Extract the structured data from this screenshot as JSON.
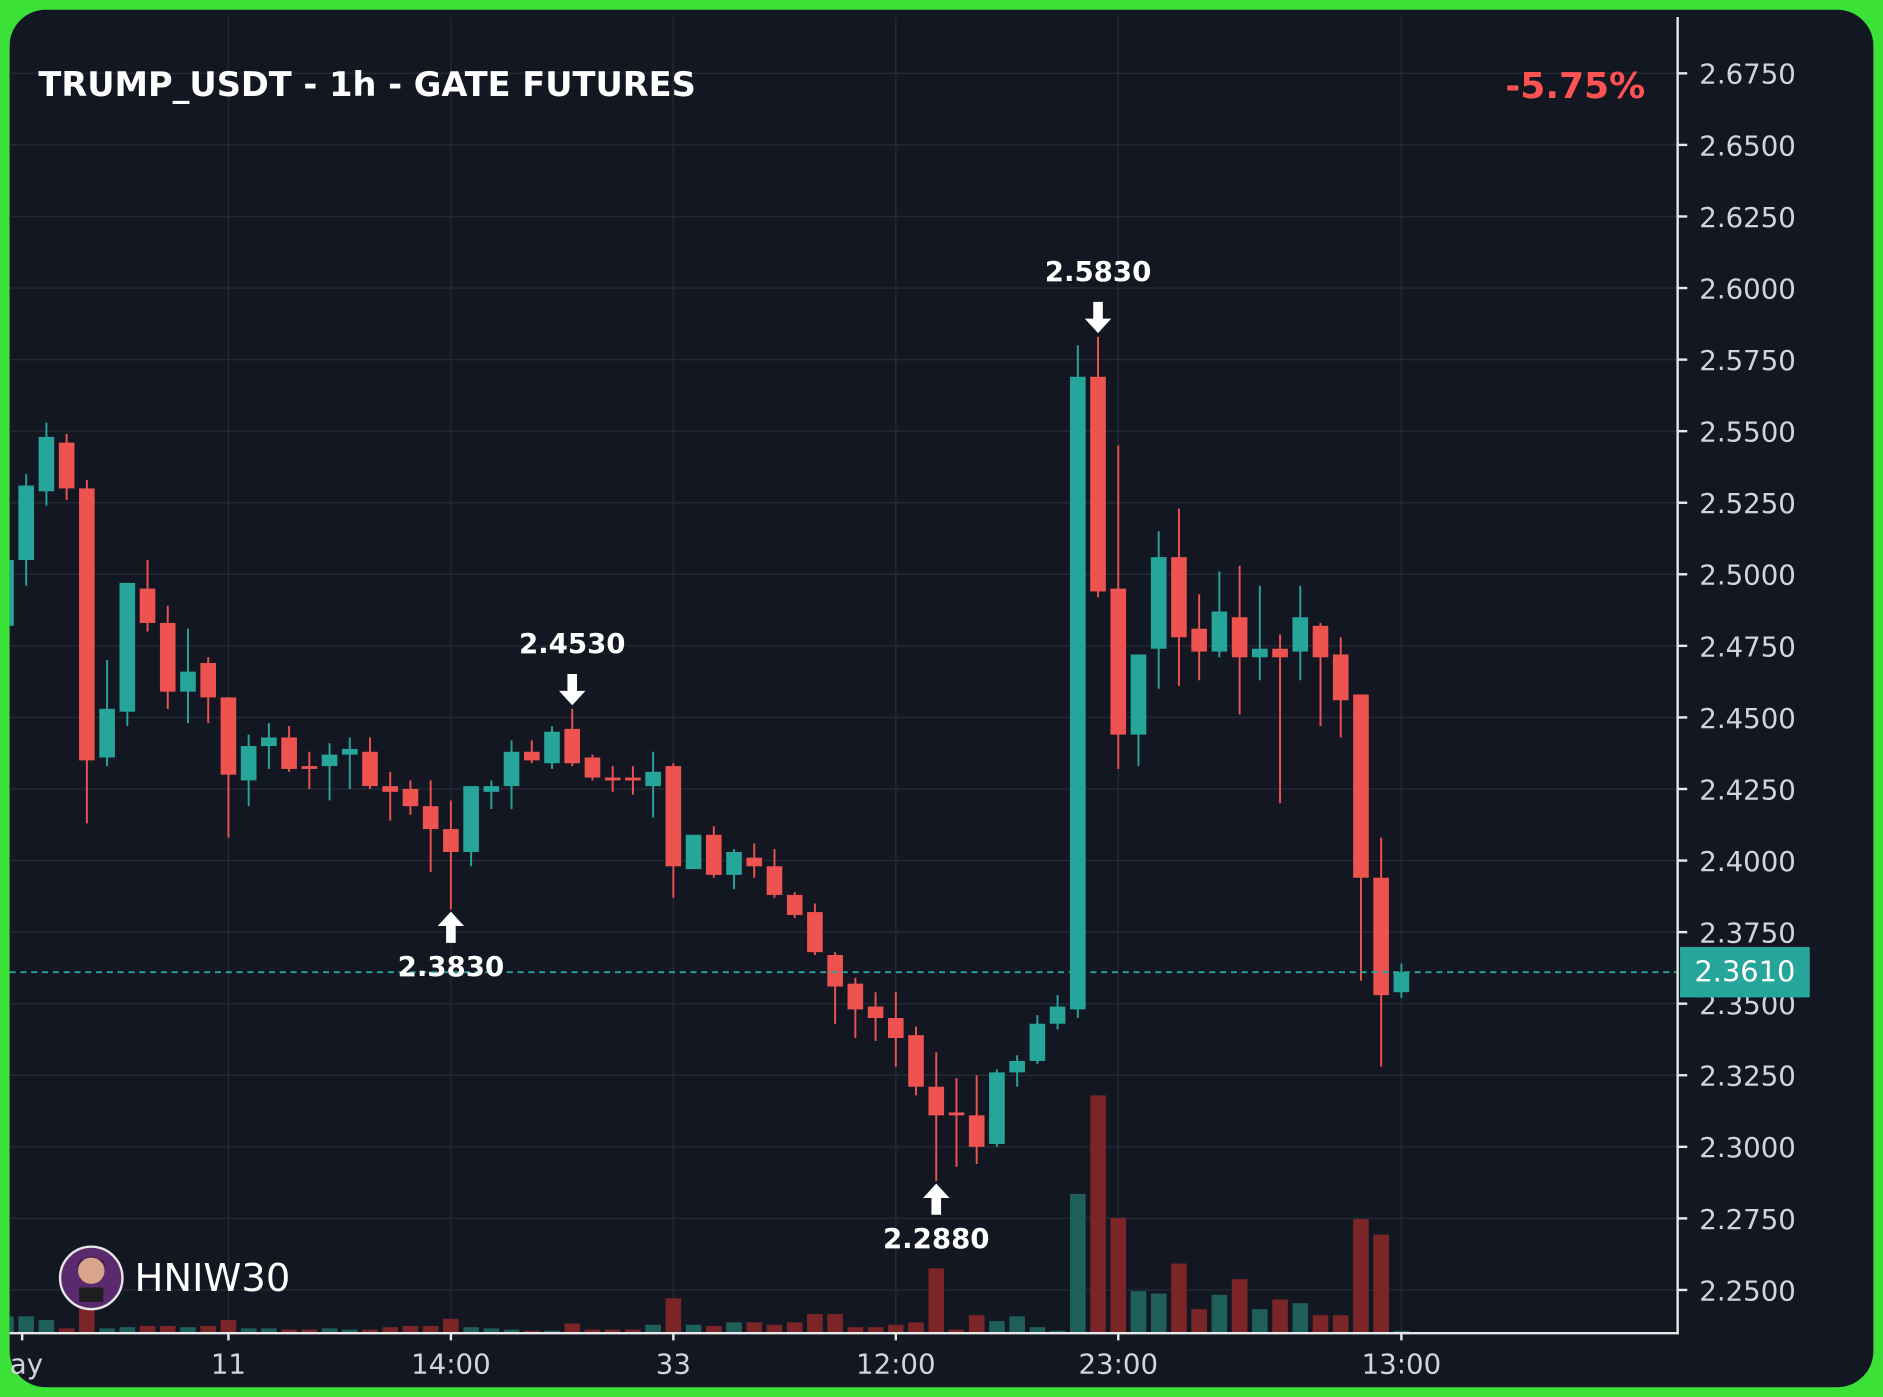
{
  "chart_data": {
    "type": "candlestick",
    "title": "TRUMP_USDT - 1h - GATE FUTURES",
    "change": "-5.75%",
    "watermark": "HNIW30",
    "up_color": "#26a69a",
    "down_color": "#ef5350",
    "volume_up_color": "#1f5f5a",
    "volume_down_color": "#7b2528",
    "grid": true,
    "x": [
      0,
      1,
      2,
      3,
      4,
      5,
      6,
      7,
      8,
      9,
      10,
      11,
      12,
      13,
      14,
      15,
      16,
      17,
      18,
      19,
      20,
      21,
      22,
      23,
      24,
      25,
      26,
      27,
      28,
      29,
      30,
      31,
      32,
      33,
      34,
      35,
      36,
      37,
      38,
      39,
      40,
      41,
      42,
      43,
      44,
      45,
      46,
      47,
      48,
      49,
      50,
      51,
      52,
      53,
      54,
      55,
      56,
      57,
      58,
      59,
      60,
      61,
      62,
      63,
      64,
      65,
      66,
      67,
      68,
      69
    ],
    "open": [
      2.482,
      2.505,
      2.529,
      2.546,
      2.53,
      2.436,
      2.452,
      2.495,
      2.483,
      2.459,
      2.469,
      2.457,
      2.428,
      2.44,
      2.443,
      2.433,
      2.433,
      2.437,
      2.438,
      2.426,
      2.425,
      2.419,
      2.411,
      2.403,
      2.424,
      2.426,
      2.438,
      2.434,
      2.446,
      2.436,
      2.429,
      2.429,
      2.426,
      2.433,
      2.397,
      2.409,
      2.395,
      2.401,
      2.398,
      2.388,
      2.382,
      2.367,
      2.357,
      2.349,
      2.345,
      2.339,
      2.321,
      2.312,
      2.311,
      2.301,
      2.326,
      2.33,
      2.343,
      2.348,
      2.569,
      2.495,
      2.444,
      2.474,
      2.506,
      2.481,
      2.473,
      2.485,
      2.471,
      2.474,
      2.473,
      2.482,
      2.472,
      2.458,
      2.394,
      2.354
    ],
    "high": [
      2.508,
      2.535,
      2.553,
      2.549,
      2.533,
      2.47,
      2.497,
      2.505,
      2.489,
      2.481,
      2.471,
      2.457,
      2.444,
      2.448,
      2.447,
      2.438,
      2.441,
      2.443,
      2.443,
      2.431,
      2.428,
      2.428,
      2.421,
      2.426,
      2.428,
      2.442,
      2.442,
      2.447,
      2.453,
      2.437,
      2.433,
      2.433,
      2.438,
      2.434,
      2.409,
      2.412,
      2.404,
      2.406,
      2.404,
      2.389,
      2.385,
      2.368,
      2.359,
      2.354,
      2.354,
      2.342,
      2.333,
      2.324,
      2.325,
      2.327,
      2.332,
      2.346,
      2.353,
      2.58,
      2.583,
      2.545,
      2.472,
      2.515,
      2.523,
      2.493,
      2.501,
      2.503,
      2.496,
      2.479,
      2.496,
      2.483,
      2.478,
      2.458,
      2.408,
      2.364
    ],
    "low": [
      2.48,
      2.496,
      2.524,
      2.526,
      2.413,
      2.433,
      2.447,
      2.48,
      2.453,
      2.448,
      2.448,
      2.408,
      2.419,
      2.432,
      2.431,
      2.425,
      2.421,
      2.425,
      2.425,
      2.414,
      2.416,
      2.396,
      2.383,
      2.398,
      2.418,
      2.418,
      2.434,
      2.432,
      2.433,
      2.428,
      2.424,
      2.423,
      2.415,
      2.387,
      2.397,
      2.394,
      2.39,
      2.394,
      2.387,
      2.38,
      2.367,
      2.343,
      2.338,
      2.337,
      2.328,
      2.318,
      2.288,
      2.293,
      2.294,
      2.3,
      2.321,
      2.329,
      2.341,
      2.345,
      2.492,
      2.432,
      2.433,
      2.46,
      2.461,
      2.463,
      2.471,
      2.451,
      2.463,
      2.42,
      2.463,
      2.447,
      2.443,
      2.358,
      2.328,
      2.352
    ],
    "close": [
      2.505,
      2.531,
      2.548,
      2.53,
      2.435,
      2.453,
      2.497,
      2.483,
      2.459,
      2.466,
      2.457,
      2.43,
      2.44,
      2.443,
      2.432,
      2.432,
      2.437,
      2.439,
      2.426,
      2.424,
      2.419,
      2.411,
      2.403,
      2.426,
      2.426,
      2.438,
      2.435,
      2.445,
      2.434,
      2.429,
      2.428,
      2.428,
      2.431,
      2.398,
      2.409,
      2.395,
      2.403,
      2.398,
      2.388,
      2.381,
      2.368,
      2.356,
      2.348,
      2.345,
      2.338,
      2.321,
      2.311,
      2.311,
      2.3,
      2.326,
      2.33,
      2.343,
      2.349,
      2.569,
      2.494,
      2.444,
      2.472,
      2.506,
      2.478,
      2.473,
      2.487,
      2.471,
      2.474,
      2.471,
      2.485,
      2.471,
      2.456,
      2.394,
      2.353,
      2.361
    ],
    "volume": [
      14,
      14,
      11,
      4,
      28,
      4,
      5,
      6,
      6,
      5,
      6,
      11,
      4,
      4,
      3,
      3,
      4,
      3,
      3,
      5,
      6,
      6,
      12,
      5,
      4,
      3,
      2,
      2,
      8,
      3,
      3,
      3,
      7,
      29,
      7,
      6,
      9,
      9,
      7,
      9,
      16,
      16,
      5,
      5,
      7,
      9,
      54,
      3,
      15,
      10,
      14,
      5,
      2,
      116,
      198,
      96,
      35,
      33,
      58,
      20,
      32,
      45,
      20,
      28,
      25,
      15,
      15,
      95,
      82,
      2
    ],
    "xlim": [
      0.18,
      82.66
    ],
    "ylim": [
      2.2349,
      2.6972
    ],
    "xticks": [
      {
        "value": 0.8,
        "label": "ay"
      },
      11,
      22,
      33,
      44,
      55,
      69
    ],
    "xtick_labels": [
      null,
      null,
      "14:00",
      null,
      "12:00",
      "23:00",
      "13:00"
    ],
    "yticks": [
      {
        "value": 2.25,
        "label": "2.2500"
      },
      {
        "value": 2.275,
        "label": "2.2750"
      },
      {
        "value": 2.3,
        "label": "2.3000"
      },
      {
        "value": 2.325,
        "label": "2.3250"
      },
      {
        "value": 2.35,
        "label": "2.3500"
      },
      {
        "value": 2.375,
        "label": "2.3750"
      },
      {
        "value": 2.4,
        "label": "2.4000"
      },
      {
        "value": 2.425,
        "label": "2.4250"
      },
      {
        "value": 2.45,
        "label": "2.4500"
      },
      {
        "value": 2.475,
        "label": "2.4750"
      },
      {
        "value": 2.5,
        "label": "2.5000"
      },
      {
        "value": 2.525,
        "label": "2.5250"
      },
      {
        "value": 2.55,
        "label": "2.5500"
      },
      {
        "value": 2.575,
        "label": "2.5750"
      },
      {
        "value": 2.6,
        "label": "2.6000"
      },
      {
        "value": 2.625,
        "label": "2.6250"
      },
      {
        "value": 2.65,
        "label": "2.6500"
      },
      {
        "value": 2.675,
        "label": "2.6750"
      }
    ],
    "last_price": {
      "value": 2.361,
      "label": "2.3610"
    },
    "annotations": [
      {
        "x": 22,
        "value": 2.383,
        "label": "2.3830",
        "position": "below"
      },
      {
        "x": 28,
        "value": 2.453,
        "label": "2.4530",
        "position": "above"
      },
      {
        "x": 46,
        "value": 2.288,
        "label": "2.2880",
        "position": "below"
      },
      {
        "x": 54,
        "value": 2.583,
        "label": "2.5830",
        "position": "above"
      }
    ]
  }
}
